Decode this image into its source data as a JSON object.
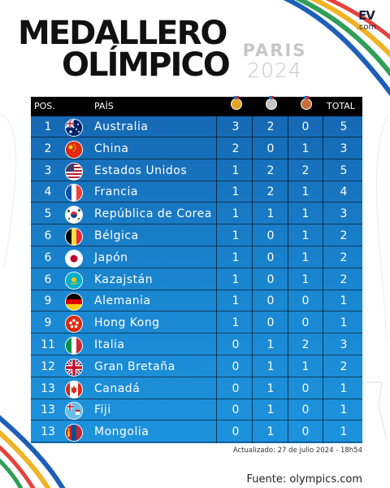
{
  "header": {
    "title_line1": "MEDALLERO",
    "title_line2": "OLÍMPICO",
    "games_line1": "PARIS",
    "games_line2": "2024",
    "brand_mark": "EV",
    "brand_domain": ".com"
  },
  "table": {
    "columns": {
      "pos": "POS.",
      "country": "PAÍS",
      "total": "TOTAL"
    },
    "medal_icons": [
      {
        "name": "gold-medal-icon",
        "color": "#e2a321"
      },
      {
        "name": "silver-medal-icon",
        "color": "#c4c4c4"
      },
      {
        "name": "bronze-medal-icon",
        "color": "#c86e3a"
      }
    ],
    "rows": [
      {
        "pos": "1",
        "country": "Australia",
        "flag": "flag-australia",
        "gold": "3",
        "silver": "2",
        "bronze": "0",
        "total": "5"
      },
      {
        "pos": "2",
        "country": "China",
        "flag": "flag-china",
        "gold": "2",
        "silver": "0",
        "bronze": "1",
        "total": "3"
      },
      {
        "pos": "3",
        "country": "Estados Unidos",
        "flag": "flag-usa",
        "gold": "1",
        "silver": "2",
        "bronze": "2",
        "total": "5"
      },
      {
        "pos": "4",
        "country": "Francia",
        "flag": "flag-france",
        "gold": "1",
        "silver": "2",
        "bronze": "1",
        "total": "4"
      },
      {
        "pos": "5",
        "country": "República de Corea",
        "flag": "flag-korea",
        "gold": "1",
        "silver": "1",
        "bronze": "1",
        "total": "3"
      },
      {
        "pos": "6",
        "country": "Bélgica",
        "flag": "flag-belgium",
        "gold": "1",
        "silver": "0",
        "bronze": "1",
        "total": "2"
      },
      {
        "pos": "6",
        "country": "Japón",
        "flag": "flag-japan",
        "gold": "1",
        "silver": "0",
        "bronze": "1",
        "total": "2"
      },
      {
        "pos": "6",
        "country": "Kazajstán",
        "flag": "flag-kazakhstan",
        "gold": "1",
        "silver": "0",
        "bronze": "1",
        "total": "2"
      },
      {
        "pos": "9",
        "country": "Alemania",
        "flag": "flag-germany",
        "gold": "1",
        "silver": "0",
        "bronze": "0",
        "total": "1"
      },
      {
        "pos": "9",
        "country": "Hong Kong",
        "flag": "flag-hong-kong",
        "gold": "1",
        "silver": "0",
        "bronze": "0",
        "total": "1"
      },
      {
        "pos": "11",
        "country": "Italia",
        "flag": "flag-italy",
        "gold": "0",
        "silver": "1",
        "bronze": "2",
        "total": "3"
      },
      {
        "pos": "12",
        "country": "Gran Bretaña",
        "flag": "flag-great-britain",
        "gold": "0",
        "silver": "1",
        "bronze": "1",
        "total": "2"
      },
      {
        "pos": "13",
        "country": "Canadá",
        "flag": "flag-canada",
        "gold": "0",
        "silver": "1",
        "bronze": "0",
        "total": "1"
      },
      {
        "pos": "13",
        "country": "Fiji",
        "flag": "flag-fiji",
        "gold": "0",
        "silver": "1",
        "bronze": "0",
        "total": "1"
      },
      {
        "pos": "13",
        "country": "Mongolia",
        "flag": "flag-mongolia",
        "gold": "0",
        "silver": "1",
        "bronze": "0",
        "total": "1"
      }
    ]
  },
  "footer": {
    "updated": "Actualizado: 27 de julio 2024 - 18h54",
    "source": "Fuente: olympics.com"
  }
}
